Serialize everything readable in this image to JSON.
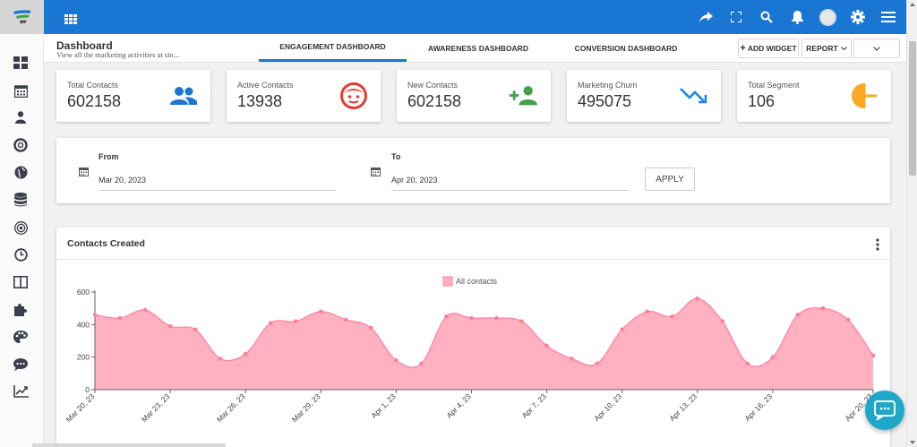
{
  "header": {
    "title": "Dashboard",
    "subtitle": "View all the marketing activities at sin...",
    "tabs": [
      {
        "label": "ENGAGEMENT DASHBOARD",
        "active": true
      },
      {
        "label": "AWARENESS DASHBOARD",
        "active": false
      },
      {
        "label": "CONVERSION DASHBOARD",
        "active": false
      }
    ],
    "add_widget_label": "ADD WIDGET",
    "report_label": "REPORT"
  },
  "colors": {
    "topbar": "#1976d2",
    "chart_fill": "#ffb0c1",
    "chart_line": "#ff7f9a",
    "chat": "#1fa7c9"
  },
  "topbar_icons": [
    "grid-apps-icon",
    "share-icon",
    "fullscreen-icon",
    "search-icon",
    "bell-icon",
    "avatar",
    "gear-icon",
    "menu-icon"
  ],
  "sidebar_icons": [
    "dashboard-icon",
    "calendar-icon",
    "person-icon",
    "lifebuoy-icon",
    "globe-icon",
    "database-icon",
    "target-icon",
    "clock-icon",
    "columns-icon",
    "puzzle-icon",
    "palette-icon",
    "chat-icon",
    "trend-chart-icon"
  ],
  "stats": [
    {
      "label": "Total Contacts",
      "value": "602158",
      "icon": "people-icon",
      "color": "#1976d2"
    },
    {
      "label": "Active Contacts",
      "value": "13938",
      "icon": "face-icon",
      "color": "#e53935"
    },
    {
      "label": "New Contacts",
      "value": "602158",
      "icon": "add-person-icon",
      "color": "#43a047"
    },
    {
      "label": "Marketing Churn",
      "value": "495075",
      "icon": "trending-down-icon",
      "color": "#1e88e5"
    },
    {
      "label": "Total Segment",
      "value": "106",
      "icon": "pie-icon",
      "color": "#f9a825"
    }
  ],
  "dates": {
    "from_label": "From",
    "from_value": "Mar 20, 2023",
    "to_label": "To",
    "to_value": "Apr 20, 2023",
    "apply_label": "APPLY"
  },
  "chart_card": {
    "title": "Contacts Created"
  },
  "chart_data": {
    "type": "area",
    "series": [
      {
        "name": "All contacts",
        "values": [
          460,
          440,
          490,
          390,
          370,
          190,
          220,
          410,
          420,
          480,
          430,
          380,
          180,
          160,
          450,
          440,
          440,
          420,
          270,
          190,
          160,
          370,
          480,
          450,
          560,
          420,
          160,
          200,
          460,
          500,
          430,
          210
        ]
      }
    ],
    "x": [
      "Mar 20, 23",
      "Mar 21, 23",
      "Mar 22, 23",
      "Mar 23, 23",
      "Mar 24, 23",
      "Mar 25, 23",
      "Mar 26, 23",
      "Mar 27, 23",
      "Mar 28, 23",
      "Mar 29, 23",
      "Mar 30, 23",
      "Mar 31, 23",
      "Apr 1, 23",
      "Apr 2, 23",
      "Apr 3, 23",
      "Apr 4, 23",
      "Apr 5, 23",
      "Apr 6, 23",
      "Apr 7, 23",
      "Apr 8, 23",
      "Apr 9, 23",
      "Apr 10, 23",
      "Apr 11, 23",
      "Apr 12, 23",
      "Apr 13, 23",
      "Apr 14, 23",
      "Apr 15, 23",
      "Apr 16, 23",
      "Apr 17, 23",
      "Apr 18, 23",
      "Apr 19, 23",
      "Apr 20, 23"
    ],
    "xtick_labels": [
      "Mar 20, 23",
      "Mar 23, 23",
      "Mar 26, 23",
      "Mar 29, 23",
      "Apr 1, 23",
      "Apr 4, 23",
      "Apr 7, 23",
      "Apr 10, 23",
      "Apr 13, 23",
      "Apr 16, 23",
      "Apr 20, 23"
    ],
    "yticks": [
      0,
      200,
      400,
      600
    ],
    "ylim": [
      0,
      600
    ],
    "legend": "top-center",
    "grid": false
  }
}
